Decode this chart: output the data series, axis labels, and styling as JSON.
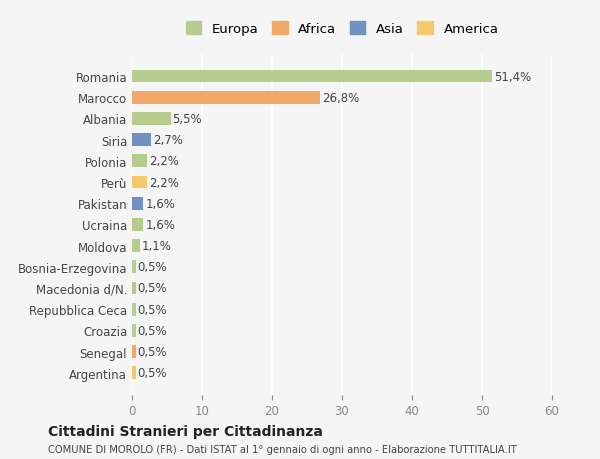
{
  "categories": [
    "Romania",
    "Marocco",
    "Albania",
    "Siria",
    "Polonia",
    "Perù",
    "Pakistan",
    "Ucraina",
    "Moldova",
    "Bosnia-Erzegovina",
    "Macedonia d/N.",
    "Repubblica Ceca",
    "Croazia",
    "Senegal",
    "Argentina"
  ],
  "values": [
    51.4,
    26.8,
    5.5,
    2.7,
    2.2,
    2.2,
    1.6,
    1.6,
    1.1,
    0.5,
    0.5,
    0.5,
    0.5,
    0.5,
    0.5
  ],
  "labels": [
    "51,4%",
    "26,8%",
    "5,5%",
    "2,7%",
    "2,2%",
    "2,2%",
    "1,6%",
    "1,6%",
    "1,1%",
    "0,5%",
    "0,5%",
    "0,5%",
    "0,5%",
    "0,5%",
    "0,5%"
  ],
  "colors": [
    "#b5cc8e",
    "#f0a868",
    "#b5cc8e",
    "#7191c0",
    "#b5cc8e",
    "#f5ca6e",
    "#7191c0",
    "#b5cc8e",
    "#b5cc8e",
    "#b5cc8e",
    "#b5cc8e",
    "#b5cc8e",
    "#b5cc8e",
    "#f0a868",
    "#f5ca6e"
  ],
  "legend": [
    {
      "label": "Europa",
      "color": "#b5cc8e"
    },
    {
      "label": "Africa",
      "color": "#f0a868"
    },
    {
      "label": "Asia",
      "color": "#7191c0"
    },
    {
      "label": "America",
      "color": "#f5ca6e"
    }
  ],
  "xlim": [
    0,
    60
  ],
  "xticks": [
    0,
    10,
    20,
    30,
    40,
    50,
    60
  ],
  "title": "Cittadini Stranieri per Cittadinanza",
  "subtitle": "COMUNE DI MOROLO (FR) - Dati ISTAT al 1° gennaio di ogni anno - Elaborazione TUTTITALIA.IT",
  "bg_color": "#f5f5f5",
  "grid_color": "#ffffff",
  "label_fontsize": 8.5,
  "bar_height": 0.6
}
